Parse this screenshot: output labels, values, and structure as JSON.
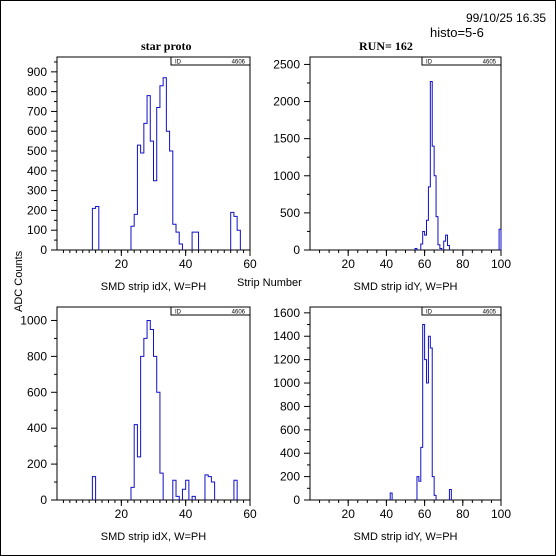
{
  "header": {
    "datetime": "99/10/25  16.35",
    "histo": "histo=5-6",
    "title_left": "star proto",
    "title_right": "RUN=  162"
  },
  "shared_labels": {
    "ylabel": "ADC Counts",
    "xlabel": "Strip Number"
  },
  "colors": {
    "histogram": "#1010c8",
    "axes": "#000000"
  },
  "chart_data": [
    {
      "type": "bar",
      "style": "step-histogram",
      "xlabel": "SMD strip idX, W=PH",
      "xlim": [
        0,
        60
      ],
      "ylim": [
        0,
        975
      ],
      "xticks": [
        20,
        40,
        60
      ],
      "yticks": [
        0,
        100,
        200,
        300,
        400,
        500,
        600,
        700,
        800,
        900
      ],
      "stat_box": [
        "ID",
        "4606"
      ],
      "bins": [
        [
          11,
          12,
          210
        ],
        [
          12,
          13,
          220
        ],
        [
          23,
          24,
          120
        ],
        [
          24,
          25,
          180
        ],
        [
          25,
          26,
          530
        ],
        [
          26,
          27,
          490
        ],
        [
          27,
          28,
          640
        ],
        [
          28,
          29,
          780
        ],
        [
          29,
          30,
          550
        ],
        [
          30,
          31,
          350
        ],
        [
          31,
          32,
          720
        ],
        [
          32,
          33,
          830
        ],
        [
          33,
          34,
          870
        ],
        [
          34,
          35,
          600
        ],
        [
          35,
          36,
          500
        ],
        [
          36,
          37,
          130
        ],
        [
          37,
          38,
          90
        ],
        [
          38,
          39,
          30
        ],
        [
          42,
          43,
          90
        ],
        [
          43,
          44,
          90
        ],
        [
          54,
          55,
          190
        ],
        [
          55,
          56,
          170
        ],
        [
          56,
          57,
          100
        ]
      ]
    },
    {
      "type": "bar",
      "style": "step-histogram",
      "xlabel": "SMD strip idY, W=PH",
      "xlim": [
        0,
        100
      ],
      "ylim": [
        0,
        2600
      ],
      "xticks": [
        20,
        40,
        60,
        80,
        100
      ],
      "yticks": [
        0,
        500,
        1000,
        1500,
        2000,
        2500
      ],
      "stat_box": [
        "ID",
        "4605"
      ],
      "bins": [
        [
          55,
          56,
          20
        ],
        [
          58,
          59,
          80
        ],
        [
          59,
          60,
          250
        ],
        [
          60,
          61,
          200
        ],
        [
          61,
          62,
          400
        ],
        [
          62,
          63,
          850
        ],
        [
          63,
          64,
          2270
        ],
        [
          64,
          65,
          1400
        ],
        [
          65,
          66,
          1000
        ],
        [
          66,
          67,
          450
        ],
        [
          67,
          68,
          70
        ],
        [
          68,
          69,
          20
        ],
        [
          70,
          71,
          120
        ],
        [
          71,
          72,
          200
        ],
        [
          72,
          73,
          60
        ],
        [
          99,
          100,
          280
        ]
      ]
    },
    {
      "type": "bar",
      "style": "step-histogram",
      "xlabel": "SMD strip idX, W=PH",
      "xlim": [
        0,
        60
      ],
      "ylim": [
        0,
        1075
      ],
      "xticks": [
        20,
        40,
        60
      ],
      "yticks": [
        0,
        200,
        400,
        600,
        800,
        1000
      ],
      "stat_box": [
        "ID",
        "4606"
      ],
      "bins": [
        [
          11,
          12,
          130
        ],
        [
          23,
          24,
          70
        ],
        [
          24,
          25,
          420
        ],
        [
          25,
          26,
          240
        ],
        [
          26,
          27,
          800
        ],
        [
          27,
          28,
          900
        ],
        [
          28,
          29,
          1000
        ],
        [
          29,
          30,
          950
        ],
        [
          30,
          31,
          800
        ],
        [
          31,
          32,
          600
        ],
        [
          32,
          33,
          150
        ],
        [
          36,
          37,
          110
        ],
        [
          37,
          38,
          20
        ],
        [
          39,
          40,
          60
        ],
        [
          40,
          41,
          110
        ],
        [
          42,
          43,
          20
        ],
        [
          46,
          47,
          140
        ],
        [
          47,
          48,
          130
        ],
        [
          48,
          49,
          100
        ],
        [
          55,
          56,
          110
        ]
      ]
    },
    {
      "type": "bar",
      "style": "step-histogram",
      "xlabel": "SMD strip idY, W=PH",
      "xlim": [
        0,
        100
      ],
      "ylim": [
        0,
        1650
      ],
      "xticks": [
        20,
        40,
        60,
        80,
        100
      ],
      "yticks": [
        0,
        200,
        400,
        600,
        800,
        1000,
        1200,
        1400,
        1600
      ],
      "stat_box": [
        "ID",
        "4605"
      ],
      "bins": [
        [
          42,
          43,
          60
        ],
        [
          56,
          57,
          200
        ],
        [
          57,
          58,
          160
        ],
        [
          58,
          59,
          450
        ],
        [
          59,
          60,
          1500
        ],
        [
          60,
          61,
          1200
        ],
        [
          61,
          62,
          1000
        ],
        [
          62,
          63,
          1400
        ],
        [
          63,
          64,
          1300
        ],
        [
          64,
          65,
          200
        ],
        [
          65,
          66,
          40
        ],
        [
          73,
          74,
          90
        ]
      ]
    }
  ]
}
